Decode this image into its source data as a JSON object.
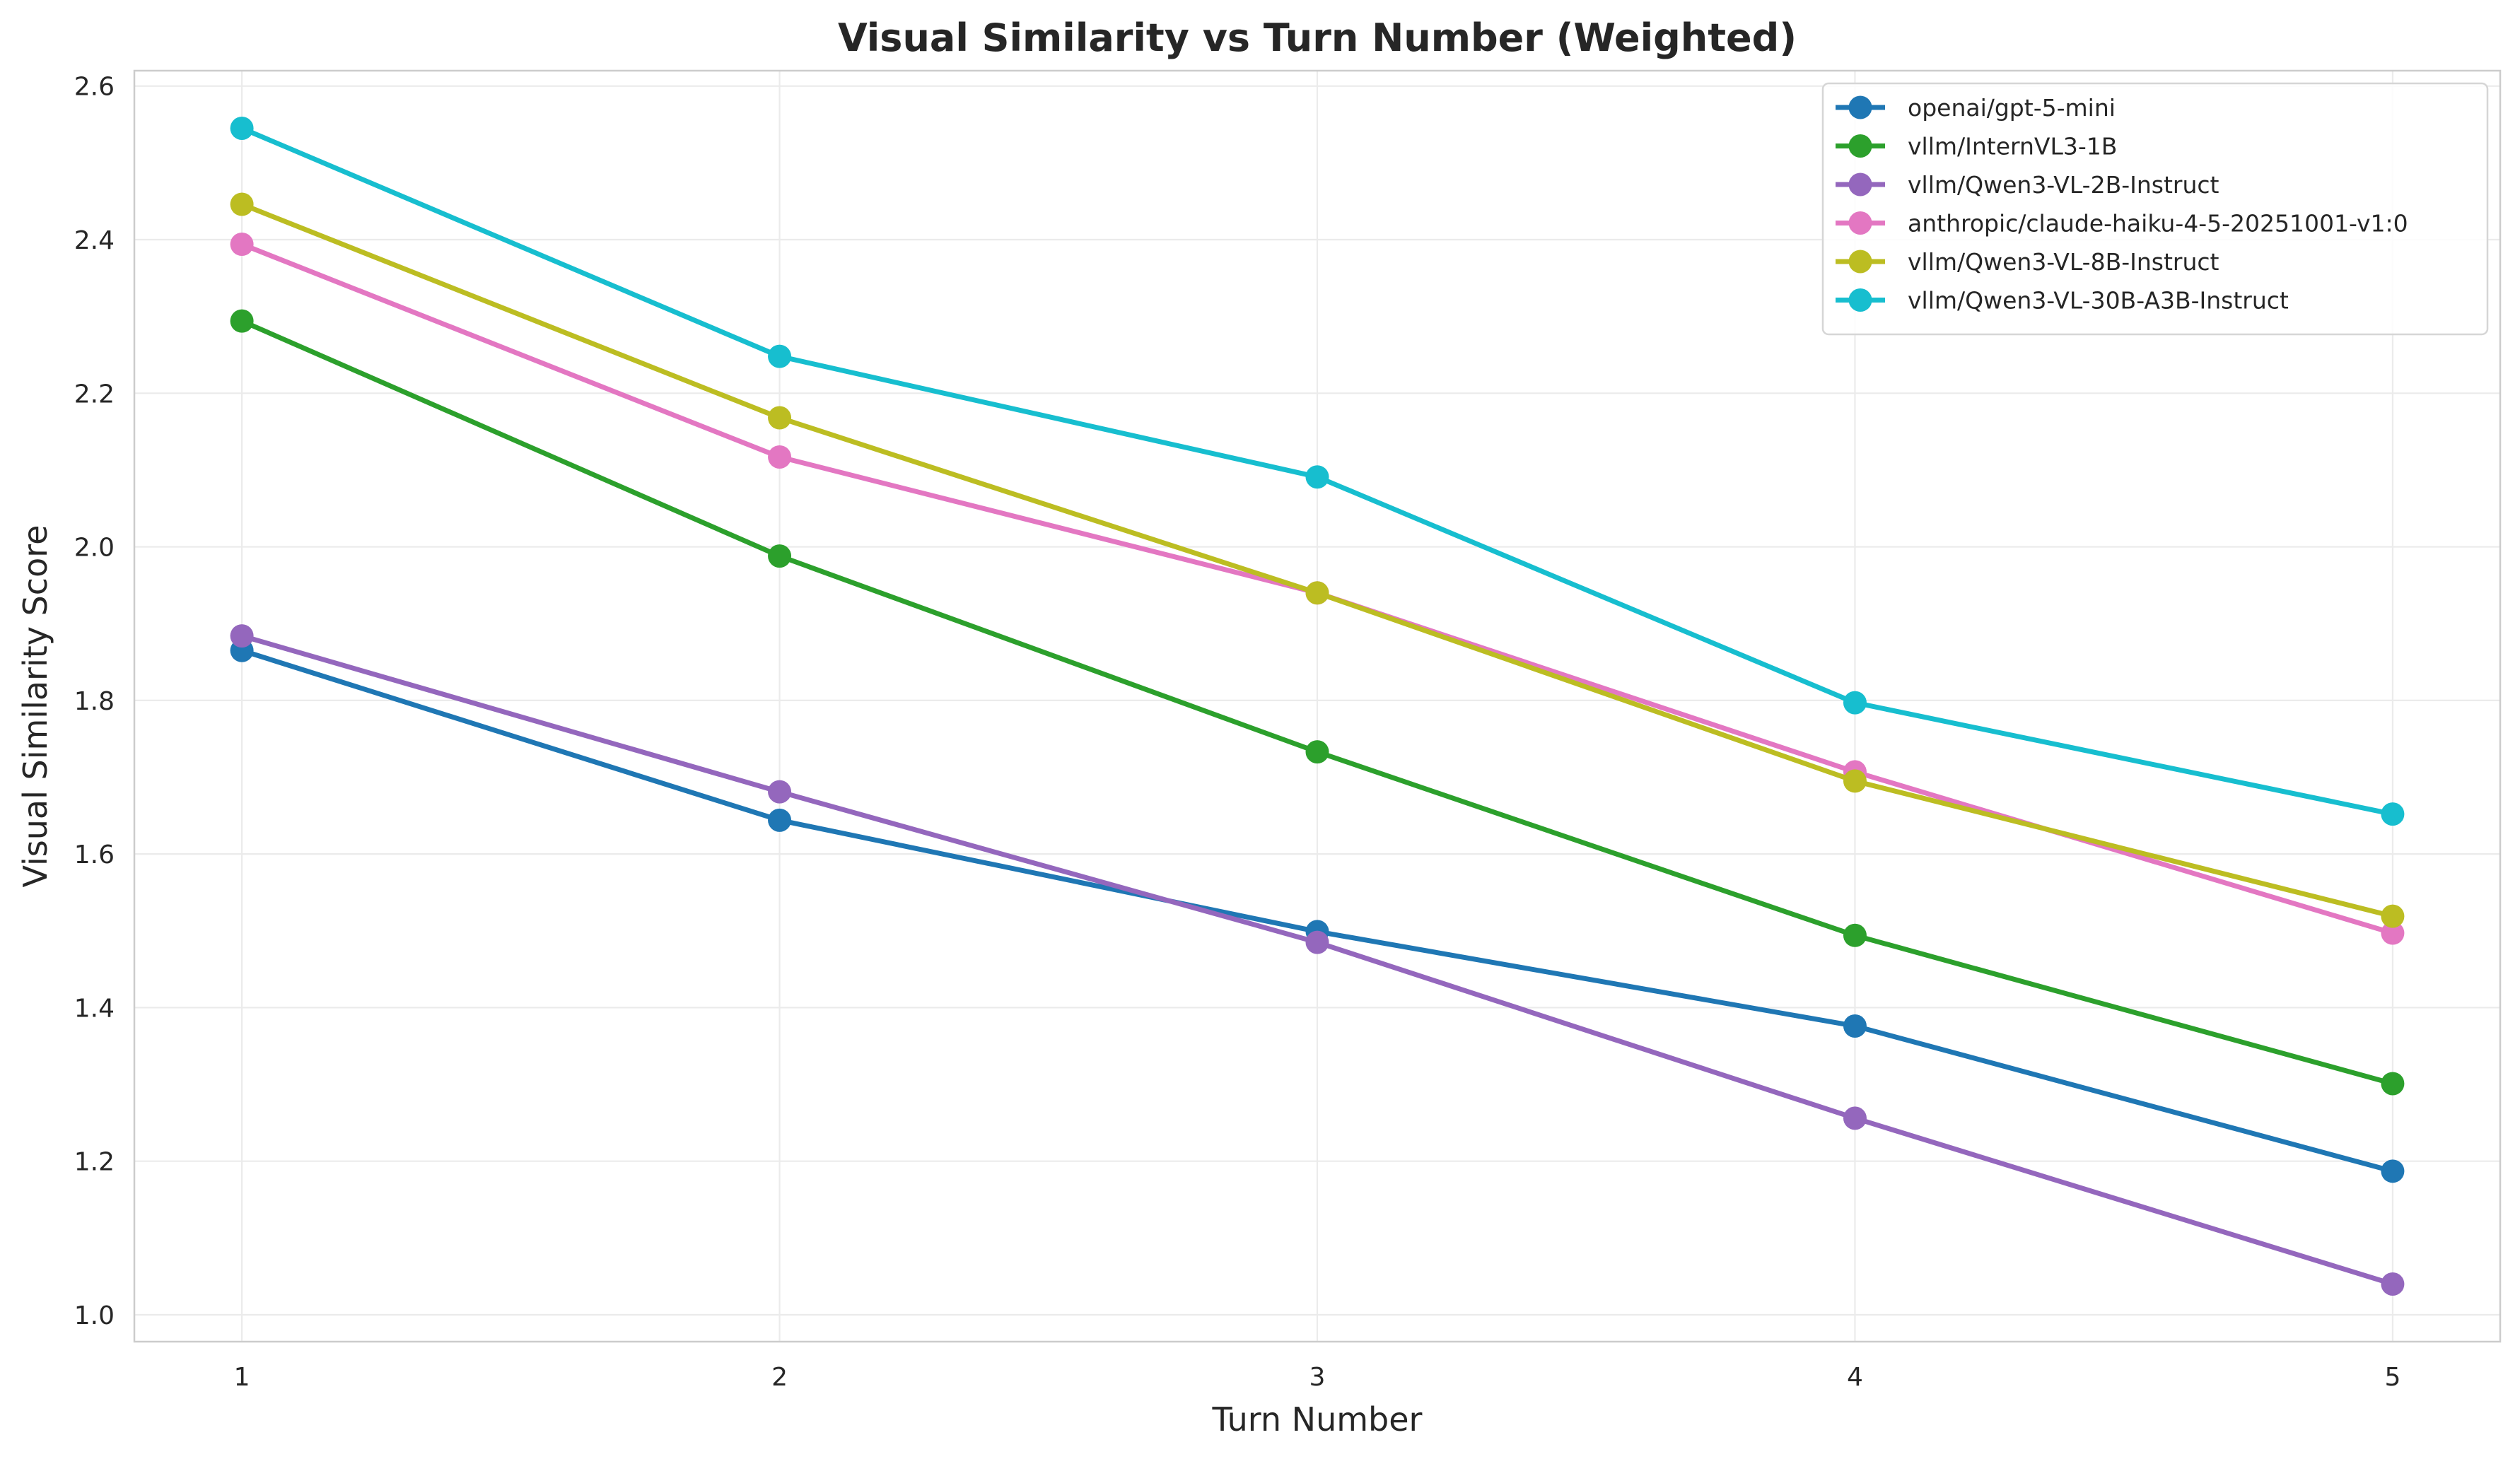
{
  "chart_data": {
    "type": "line",
    "title": "Visual Similarity vs Turn Number (Weighted)",
    "xlabel": "Turn Number",
    "ylabel": "Visual Similarity Score",
    "x": [
      1,
      2,
      3,
      4,
      5
    ],
    "xlim": [
      0.8,
      5.2
    ],
    "ylim": [
      0.965,
      2.62
    ],
    "yticks": [
      1.0,
      1.2,
      1.4,
      1.6,
      1.8,
      2.0,
      2.2,
      2.4,
      2.6
    ],
    "ytick_labels": [
      "1.0",
      "1.2",
      "1.4",
      "1.6",
      "1.8",
      "2.0",
      "2.2",
      "2.4",
      "2.6"
    ],
    "xtick_labels": [
      "1",
      "2",
      "3",
      "4",
      "5"
    ],
    "grid": true,
    "legend_position": "top-right",
    "series": [
      {
        "name": "openai/gpt-5-mini",
        "color": "#1f77b4",
        "values": [
          1.865,
          1.644,
          1.499,
          1.376,
          1.187
        ]
      },
      {
        "name": "vllm/InternVL3-1B",
        "color": "#2ca02c",
        "values": [
          2.294,
          1.988,
          1.733,
          1.494,
          1.301
        ]
      },
      {
        "name": "vllm/Qwen3-VL-2B-Instruct",
        "color": "#9467bd",
        "values": [
          1.884,
          1.681,
          1.485,
          1.256,
          1.04
        ]
      },
      {
        "name": "anthropic/claude-haiku-4-5-20251001-v1:0",
        "color": "#e377c2",
        "values": [
          2.394,
          2.117,
          1.94,
          1.707,
          1.497
        ]
      },
      {
        "name": "vllm/Qwen3-VL-8B-Instruct",
        "color": "#bcbd22",
        "values": [
          2.446,
          2.168,
          1.94,
          1.695,
          1.519
        ]
      },
      {
        "name": "vllm/Qwen3-VL-30B-A3B-Instruct",
        "color": "#17becf",
        "values": [
          2.545,
          2.248,
          2.091,
          1.797,
          1.652
        ]
      }
    ]
  }
}
